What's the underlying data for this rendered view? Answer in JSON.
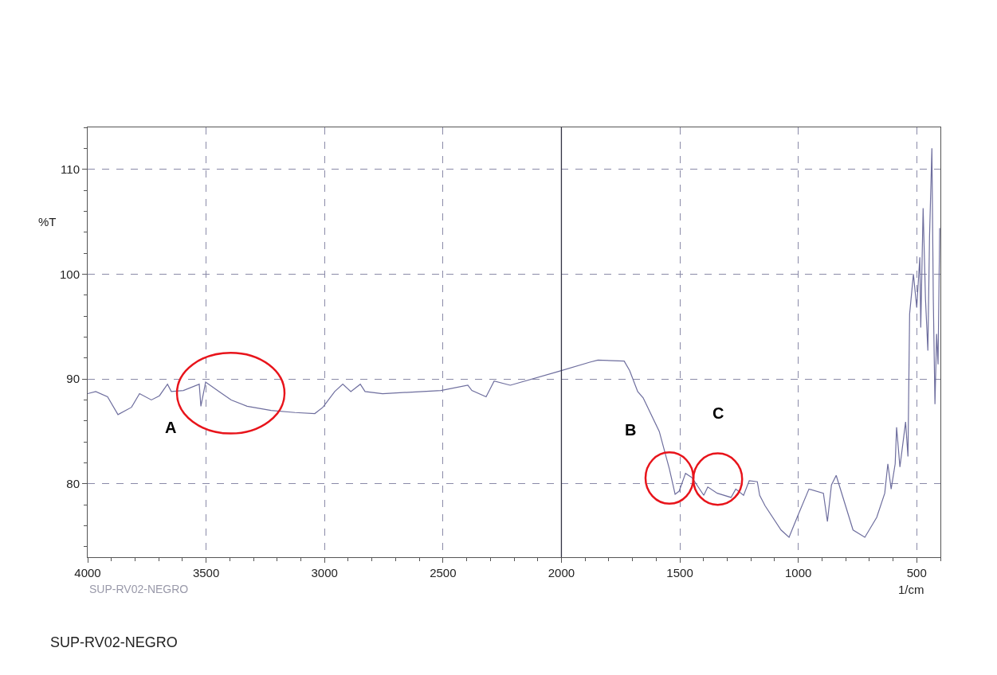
{
  "chart_data": {
    "type": "line",
    "title": "SUP-RV02-NEGRO",
    "xlabel": "1/cm",
    "ylabel": "%T",
    "annotations": [
      "SUP-RV02-NEGRO",
      "A",
      "B",
      "C"
    ],
    "x": [
      4000,
      3966,
      3916,
      3872,
      3815,
      3781,
      3731,
      3697,
      3663,
      3647,
      3596,
      3529,
      3522,
      3502,
      3445,
      3394,
      3327,
      3226,
      3125,
      3041,
      3007,
      2957,
      2923,
      2889,
      2849,
      2829,
      2755,
      2509,
      2395,
      2378,
      2318,
      2284,
      2216,
      2015,
      1880,
      1846,
      1735,
      1712,
      1678,
      1655,
      1587,
      1544,
      1520,
      1503,
      1476,
      1449,
      1399,
      1382,
      1342,
      1284,
      1264,
      1231,
      1207,
      1173,
      1163,
      1140,
      1073,
      1039,
      1005,
      955,
      894,
      877,
      860,
      840,
      769,
      719,
      669,
      635,
      622,
      608,
      591,
      585,
      571,
      547,
      537,
      530,
      514,
      500,
      487,
      483,
      473,
      463,
      453,
      446,
      436,
      430,
      423,
      416,
      410,
      403
    ],
    "series": [
      {
        "color": "#6e6e9e",
        "values": [
          88.6,
          88.8,
          88.3,
          86.6,
          87.3,
          88.6,
          88.0,
          88.4,
          89.5,
          88.8,
          88.9,
          89.5,
          87.4,
          89.7,
          88.8,
          88.0,
          87.4,
          87.0,
          86.8,
          86.7,
          87.3,
          88.8,
          89.5,
          88.8,
          89.5,
          88.8,
          88.6,
          88.9,
          89.4,
          88.9,
          88.3,
          89.8,
          89.4,
          90.7,
          91.6,
          91.8,
          91.7,
          90.8,
          88.8,
          88.2,
          85.0,
          81.4,
          79.0,
          79.3,
          81.0,
          80.6,
          78.9,
          79.7,
          79.1,
          78.7,
          79.5,
          78.9,
          80.3,
          80.2,
          78.9,
          77.9,
          75.6,
          74.9,
          76.8,
          79.5,
          79.1,
          76.4,
          79.9,
          80.8,
          75.6,
          74.9,
          76.8,
          79.1,
          81.9,
          79.5,
          81.9,
          85.4,
          81.6,
          85.9,
          82.6,
          96.2,
          100.0,
          96.8,
          101.6,
          94.9,
          106.3,
          97.6,
          92.7,
          103.5,
          112.0,
          97.6,
          87.6,
          94.3,
          91.4,
          104.4
        ]
      }
    ],
    "xlim": [
      4000,
      400
    ],
    "ylim": [
      73,
      114
    ],
    "xticks": [
      4000,
      3500,
      3000,
      2500,
      2000,
      1500,
      1000,
      500
    ],
    "yticks": [
      80,
      90,
      100,
      110
    ],
    "ref_lines": [
      {
        "axis": "x",
        "value": 2000,
        "color": "#333344",
        "line_style": "solid"
      }
    ],
    "grid": true,
    "marker": "none",
    "line_style": "solid"
  }
}
